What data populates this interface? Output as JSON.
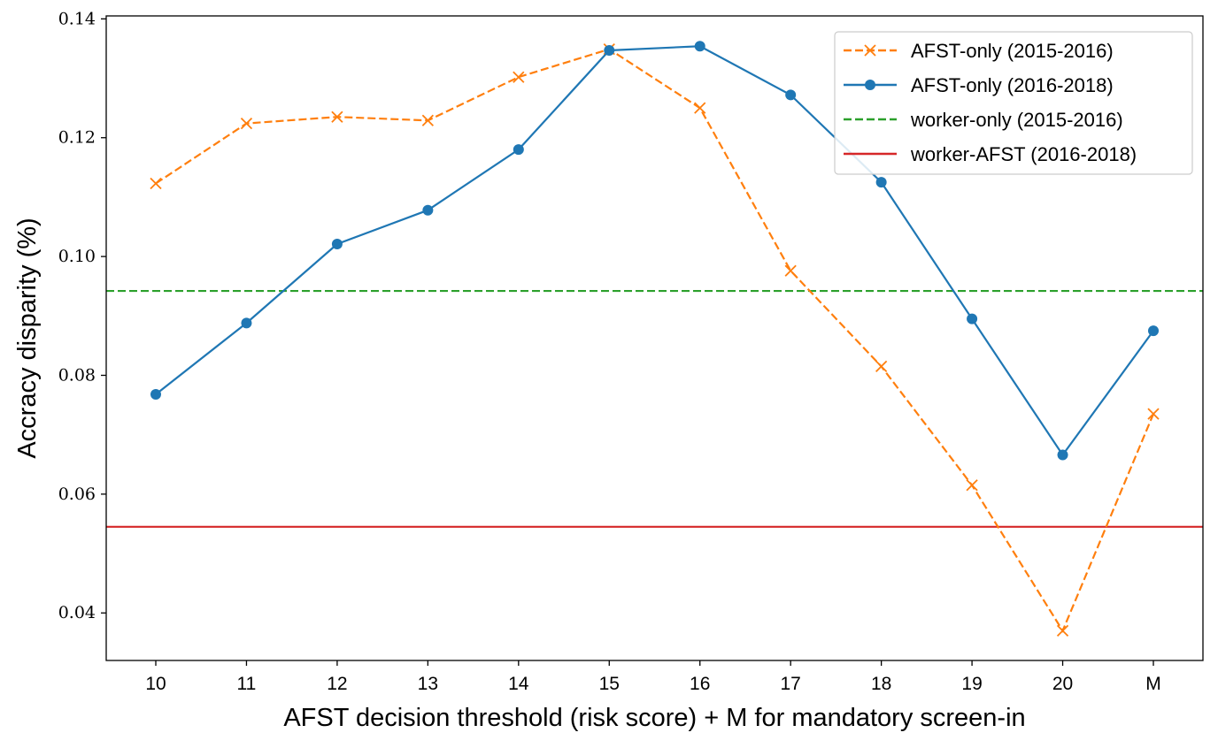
{
  "chart_data": {
    "type": "line",
    "xlabel": "AFST decision threshold (risk score) + M for mandatory screen-in",
    "ylabel": "Accracy disparity (%)",
    "categories": [
      "10",
      "11",
      "12",
      "13",
      "14",
      "15",
      "16",
      "17",
      "18",
      "19",
      "20",
      "M"
    ],
    "ylim": [
      0.032,
      0.1405
    ],
    "yticks": [
      0.04,
      0.06,
      0.08,
      0.1,
      0.12,
      0.14
    ],
    "ytick_labels": [
      "0.04",
      "0.06",
      "0.08",
      "0.10",
      "0.12",
      "0.14"
    ],
    "grid": false,
    "legend_position": "top-right",
    "series": [
      {
        "name": "AFST-only (2015-2016)",
        "values": [
          0.1123,
          0.1224,
          0.1235,
          0.1229,
          0.1302,
          0.1349,
          0.125,
          0.0976,
          0.0815,
          0.0615,
          0.037,
          0.0735
        ],
        "color": "#ff7f0e",
        "style": "dashed",
        "marker": "x"
      },
      {
        "name": "AFST-only (2016-2018)",
        "values": [
          0.0768,
          0.0888,
          0.1021,
          0.1078,
          0.118,
          0.1347,
          0.1354,
          0.1272,
          0.1125,
          0.0895,
          0.0666,
          0.0875
        ],
        "color": "#1f77b4",
        "style": "solid",
        "marker": "o"
      }
    ],
    "reference_lines": [
      {
        "name": "worker-only (2015-2016)",
        "y": 0.0942,
        "color": "#2ca02c",
        "style": "dashed"
      },
      {
        "name": "worker-AFST (2016-2018)",
        "y": 0.0545,
        "color": "#d62728",
        "style": "solid"
      }
    ]
  }
}
